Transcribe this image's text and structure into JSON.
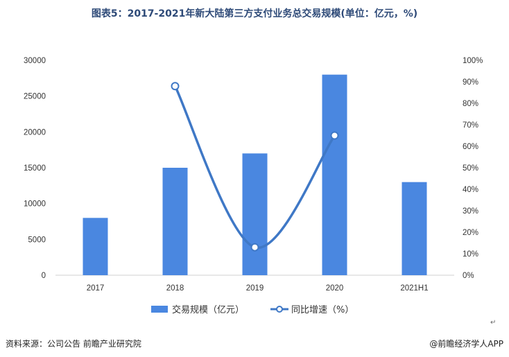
{
  "chart_data": {
    "type": "bar+line",
    "title": "图表5：2017-2021年新大陆第三方支付业务总交易规模(单位：亿元，%)",
    "categories": [
      "2017",
      "2018",
      "2019",
      "2020",
      "2021H1"
    ],
    "series": [
      {
        "name": "交易规模（亿元）",
        "type": "bar",
        "axis": "left",
        "values": [
          8000,
          15000,
          17000,
          28000,
          13000
        ]
      },
      {
        "name": "同比增速（%）",
        "type": "line",
        "axis": "right",
        "values": [
          null,
          88,
          13,
          65,
          null
        ]
      }
    ],
    "y_left": {
      "ylim": [
        0,
        30000
      ],
      "ticks": [
        "0",
        "5000",
        "10000",
        "15000",
        "20000",
        "25000",
        "30000"
      ]
    },
    "y_right": {
      "ylim": [
        0,
        100
      ],
      "ticks": [
        "0%",
        "10%",
        "20%",
        "30%",
        "40%",
        "50%",
        "60%",
        "70%",
        "80%",
        "90%",
        "100%"
      ]
    },
    "legend": "bottom",
    "grid": false
  },
  "colors": {
    "bar": "#4a87e0",
    "line": "#3f78c6",
    "title": "#2e4a78"
  },
  "footer": {
    "source": "资料来源：公司公告 前瞻产业研究院",
    "brand": "@前瞻经济学人APP"
  }
}
